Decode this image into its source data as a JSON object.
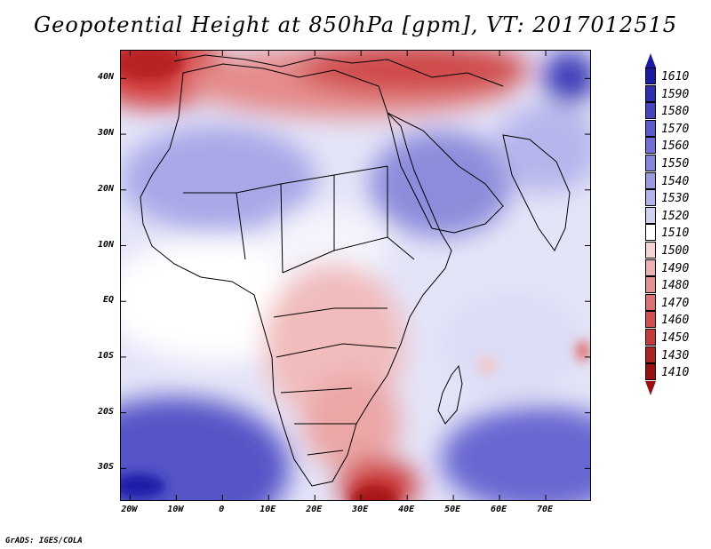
{
  "title": "Geopotential Height at 850hPa [gpm], VT: 2017012515",
  "credit": "GrADS: IGES/COLA",
  "map": {
    "lat_labels": [
      "40N",
      "30N",
      "20N",
      "10N",
      "EQ",
      "10S",
      "20S",
      "30S"
    ],
    "lon_labels": [
      "20W",
      "10W",
      "0",
      "10E",
      "20E",
      "30E",
      "40E",
      "50E",
      "60E",
      "70E"
    ],
    "lat_values": [
      40,
      30,
      20,
      10,
      0,
      -10,
      -20,
      -30
    ],
    "lon_values": [
      -20,
      -10,
      0,
      10,
      20,
      30,
      40,
      50,
      60,
      70
    ],
    "lat_range": [
      -36,
      45
    ],
    "lon_range": [
      -22,
      80
    ]
  },
  "colorbar": {
    "labels": [
      "1610",
      "1590",
      "1580",
      "1570",
      "1560",
      "1550",
      "1540",
      "1530",
      "1520",
      "1510",
      "1500",
      "1490",
      "1480",
      "1470",
      "1460",
      "1450",
      "1430",
      "1410"
    ],
    "colors": [
      "#1a1aa6",
      "#2e2eb5",
      "#4545c3",
      "#5b5bcc",
      "#7070d6",
      "#8585dd",
      "#9a9ae3",
      "#b3b3eb",
      "#d0d0f3",
      "#ffffff",
      "#f6d3d3",
      "#eeb0b0",
      "#e69090",
      "#dd7070",
      "#d45050",
      "#c83a3a",
      "#b22222",
      "#9a1010"
    ]
  }
}
